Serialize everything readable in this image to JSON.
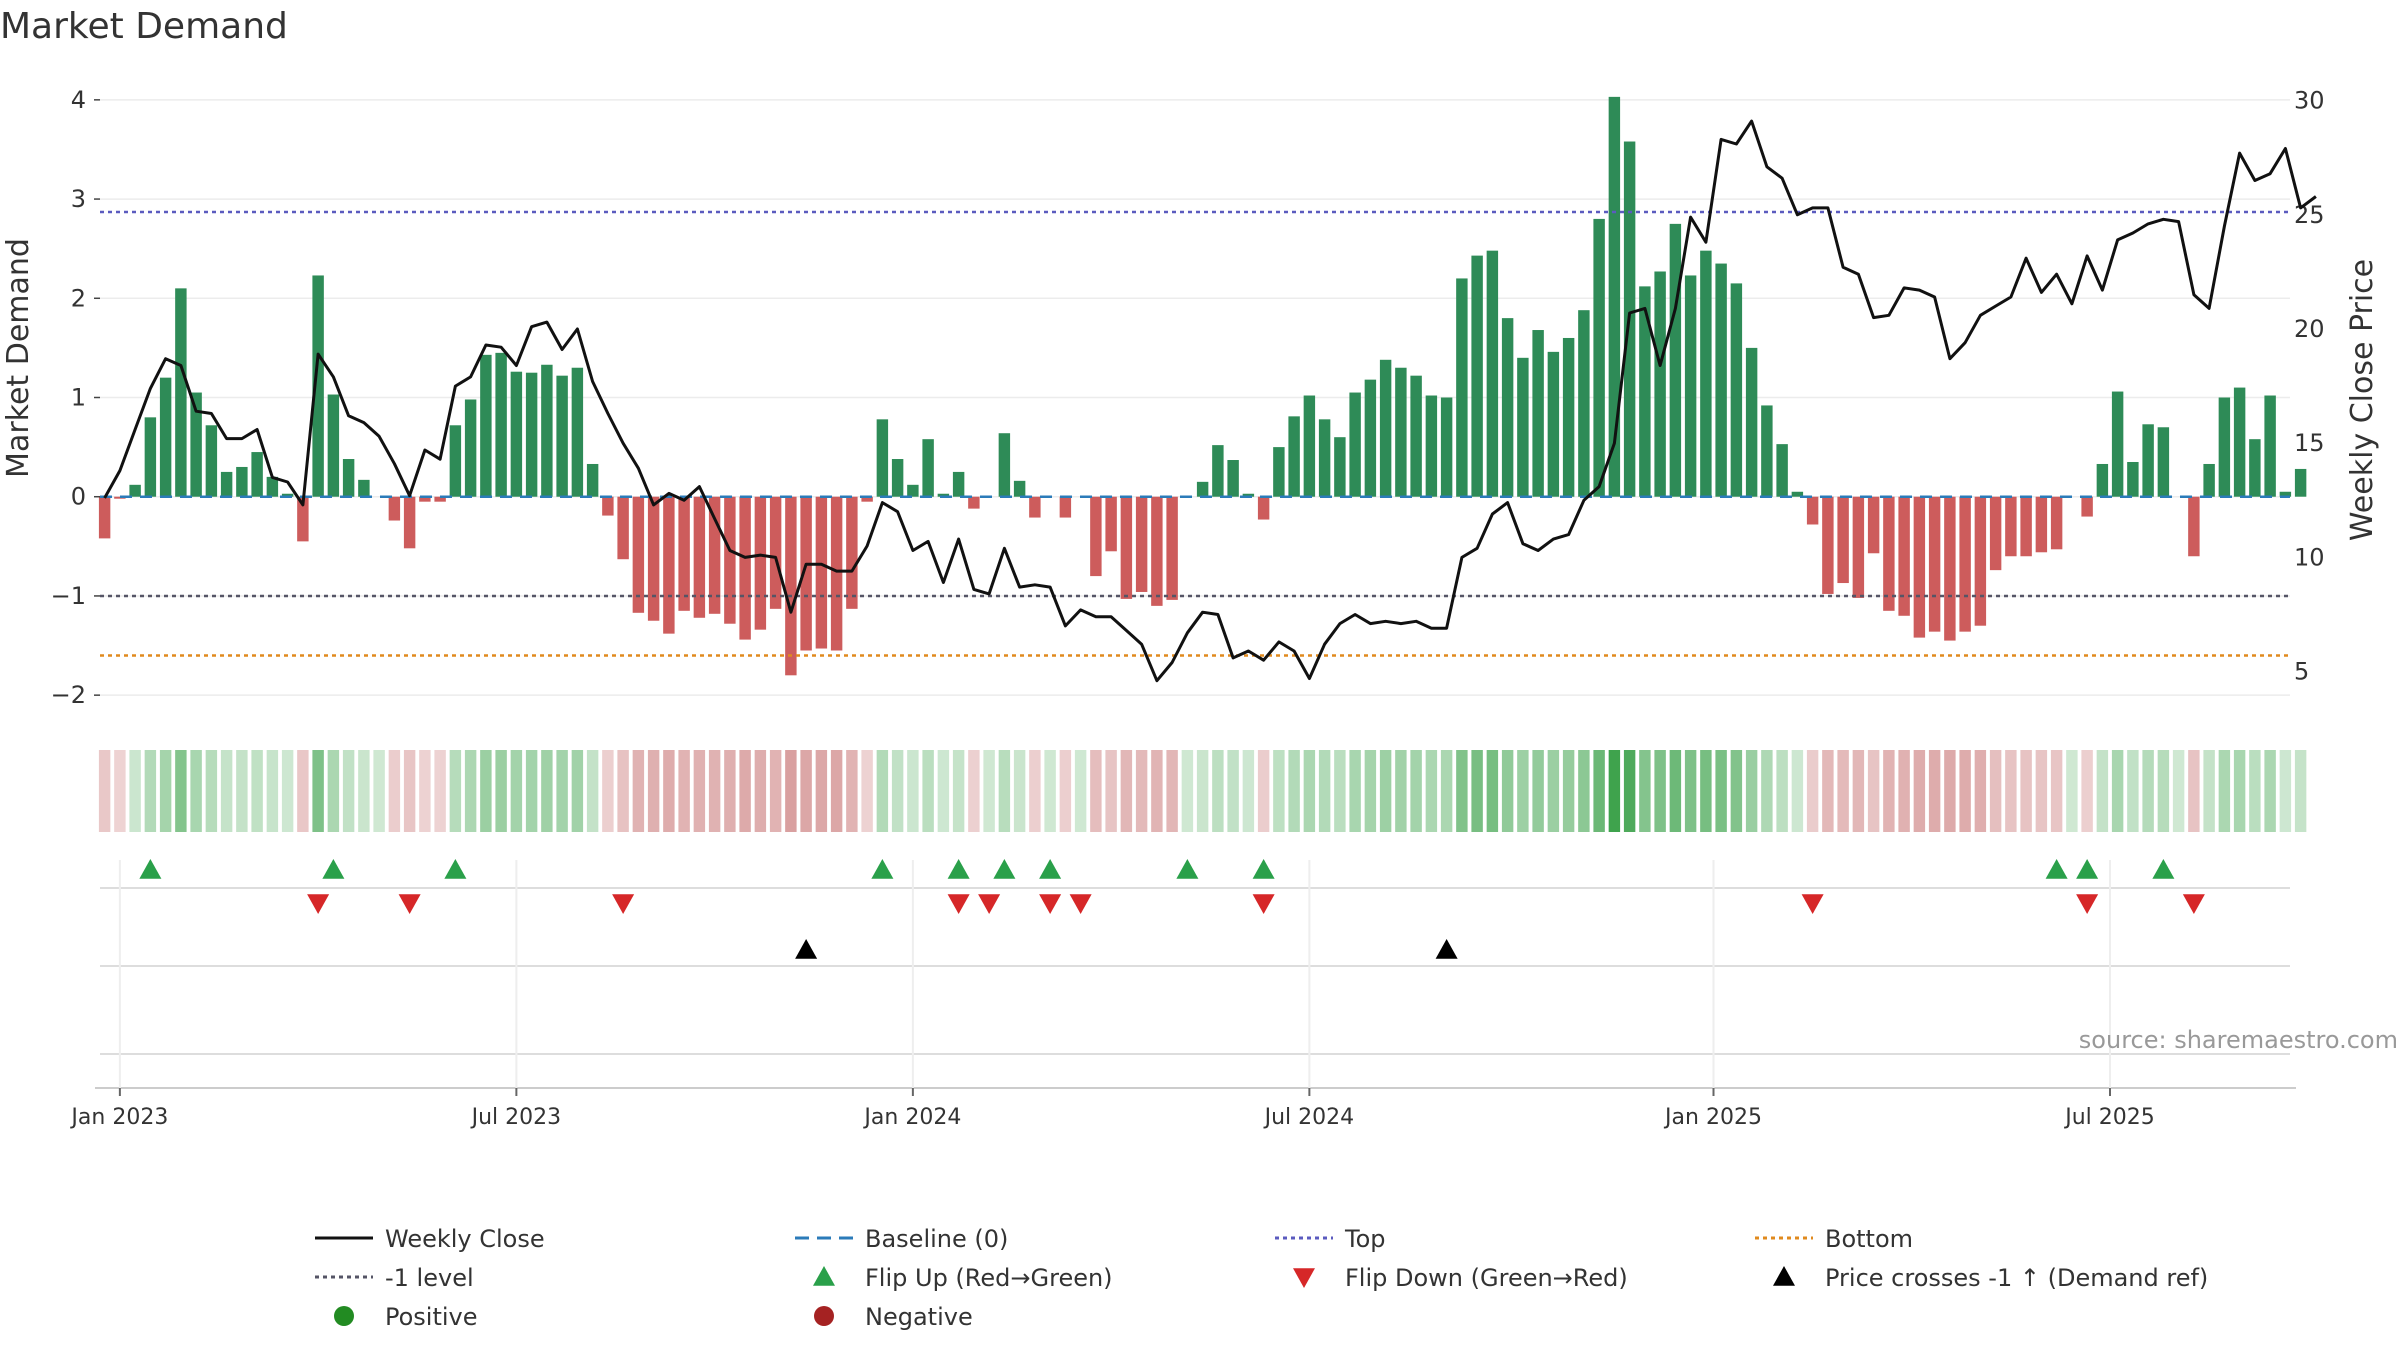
{
  "chart_data": {
    "type": "bar+line",
    "title": "Market Demand",
    "ylabel_left": "Market Demand",
    "ylabel_right": "Weekly Close Price",
    "source_text": "source: sharemaestro.com",
    "ylim_left": [
      -2.2,
      4.2
    ],
    "ylim_right": [
      3.1,
      30.9
    ],
    "yticks_left": [
      -2,
      -1,
      0,
      1,
      2,
      3,
      4
    ],
    "yticks_right": [
      5,
      10,
      15,
      20,
      25,
      30
    ],
    "x_start": "2022-12-26",
    "week_count": 144,
    "x_ticks": [
      {
        "label": "Jan 2023",
        "week": 1
      },
      {
        "label": "Jul 2023",
        "week": 27
      },
      {
        "label": "Jan 2024",
        "week": 53
      },
      {
        "label": "Jul 2024",
        "week": 79
      },
      {
        "label": "Jan 2025",
        "week": 105.5
      },
      {
        "label": "Jul 2025",
        "week": 131.5
      }
    ],
    "reference_lines": {
      "top": 2.87,
      "minus_one": -1.0,
      "bottom": -1.6,
      "baseline": 0
    },
    "demand": [
      -0.42,
      -0.02,
      0.12,
      0.8,
      1.2,
      2.1,
      1.05,
      0.72,
      0.25,
      0.3,
      0.45,
      0.2,
      0.03,
      -0.45,
      2.23,
      1.03,
      0.38,
      0.17,
      0.0,
      -0.24,
      -0.52,
      -0.05,
      -0.05,
      0.72,
      0.98,
      1.43,
      1.45,
      1.26,
      1.25,
      1.33,
      1.22,
      1.3,
      0.33,
      -0.19,
      -0.63,
      -1.17,
      -1.25,
      -1.38,
      -1.15,
      -1.22,
      -1.18,
      -1.28,
      -1.44,
      -1.34,
      -1.13,
      -1.8,
      -1.55,
      -1.53,
      -1.55,
      -1.13,
      -0.05,
      0.78,
      0.38,
      0.12,
      0.58,
      0.03,
      0.25,
      -0.12,
      0.0,
      0.64,
      0.16,
      -0.21,
      0.0,
      -0.21,
      0.0,
      -0.8,
      -0.55,
      -1.03,
      -0.96,
      -1.1,
      -1.04,
      0.0,
      0.15,
      0.52,
      0.37,
      0.03,
      -0.23,
      0.5,
      0.81,
      1.02,
      0.78,
      0.6,
      1.05,
      1.18,
      1.38,
      1.3,
      1.22,
      1.02,
      1.0,
      2.2,
      2.43,
      2.48,
      1.8,
      1.4,
      1.68,
      1.46,
      1.6,
      1.88,
      2.8,
      4.03,
      3.58,
      2.12,
      2.27,
      2.75,
      2.23,
      2.48,
      2.35,
      2.15,
      1.5,
      0.92,
      0.53,
      0.05,
      -0.28,
      -0.98,
      -0.87,
      -1.02,
      -0.57,
      -1.15,
      -1.2,
      -1.42,
      -1.36,
      -1.45,
      -1.36,
      -1.3,
      -0.74,
      -0.6,
      -0.6,
      -0.56,
      -0.53,
      0.0,
      -0.2,
      0.33,
      1.06,
      0.35,
      0.73,
      0.7,
      0.0,
      -0.6,
      0.33,
      1.0,
      1.1,
      0.58,
      1.02,
      0.05,
      0.28
    ],
    "price": [
      12.6,
      13.8,
      15.6,
      17.4,
      18.7,
      18.4,
      16.4,
      16.3,
      15.2,
      15.2,
      15.6,
      13.5,
      13.3,
      12.3,
      18.9,
      17.9,
      16.2,
      15.9,
      15.3,
      14.1,
      12.7,
      14.7,
      14.3,
      17.5,
      17.9,
      19.3,
      19.2,
      18.4,
      20.1,
      20.3,
      19.1,
      20.0,
      17.7,
      16.3,
      15.0,
      13.9,
      12.3,
      12.8,
      12.5,
      13.1,
      11.7,
      10.3,
      10.0,
      10.1,
      10.0,
      7.6,
      9.7,
      9.7,
      9.4,
      9.4,
      10.5,
      12.4,
      12.0,
      10.3,
      10.7,
      8.9,
      10.8,
      8.6,
      8.4,
      10.4,
      8.7,
      8.8,
      8.7,
      7.0,
      7.7,
      7.4,
      7.4,
      6.8,
      6.2,
      4.6,
      5.4,
      6.7,
      7.6,
      7.5,
      5.6,
      5.9,
      5.5,
      6.3,
      5.9,
      4.7,
      6.2,
      7.1,
      7.5,
      7.1,
      7.2,
      7.1,
      7.2,
      6.9,
      6.9,
      10.0,
      10.4,
      11.9,
      12.4,
      10.6,
      10.3,
      10.8,
      11.0,
      12.5,
      13.1,
      15.0,
      20.7,
      20.9,
      18.4,
      20.9,
      24.9,
      23.8,
      28.3,
      28.1,
      29.1,
      27.1,
      26.6,
      25.0,
      25.3,
      25.3,
      22.7,
      22.4,
      20.5,
      20.6,
      21.8,
      21.7,
      21.4,
      18.7,
      19.4,
      20.6,
      21.0,
      21.4,
      23.1,
      21.6,
      22.4,
      21.1,
      23.2,
      21.7,
      23.9,
      24.2,
      24.6,
      24.8,
      24.7,
      21.5,
      20.9,
      24.5,
      27.7,
      26.5,
      26.8,
      27.9,
      25.3,
      25.8
    ],
    "flip_up_weeks": [
      3,
      15,
      23,
      51,
      56,
      59,
      62,
      71,
      76,
      128,
      130,
      135
    ],
    "flip_down_weeks": [
      14,
      20,
      34,
      56,
      58,
      62,
      64,
      76,
      112,
      130,
      137
    ],
    "cross_up_weeks": [
      46,
      88
    ],
    "legend": [
      {
        "label": "Weekly Close",
        "kind": "line",
        "color": "#111111"
      },
      {
        "label": "Baseline (0)",
        "kind": "dash",
        "color": "#2b7bb9"
      },
      {
        "label": "Top",
        "kind": "dot",
        "color": "#5b5bbf"
      },
      {
        "label": "Bottom",
        "kind": "dot",
        "color": "#e08a1e"
      },
      {
        "label": "-1 level",
        "kind": "dot",
        "color": "#555566"
      },
      {
        "label": "Flip Up (Red→Green)",
        "kind": "tri-up",
        "color": "#2aa04a"
      },
      {
        "label": "Flip Down (Green→Red)",
        "kind": "tri-down",
        "color": "#d62728"
      },
      {
        "label": "Price crosses -1 ↑ (Demand ref)",
        "kind": "tri-up",
        "color": "#000000"
      },
      {
        "label": "Positive",
        "kind": "circle",
        "color": "#228b22"
      },
      {
        "label": "Negative",
        "kind": "circle",
        "color": "#a52222"
      }
    ],
    "colors": {
      "positive": "#2e8b57",
      "negative": "#cd5c5c",
      "heat_pos": "#3fa34d",
      "heat_neg": "#d9a0a0"
    }
  }
}
